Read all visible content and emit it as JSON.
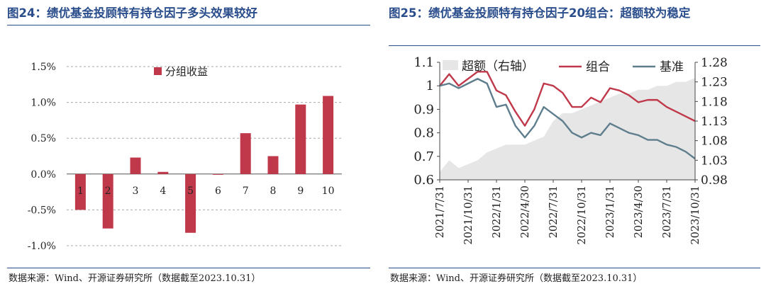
{
  "left": {
    "title": "图24：绩优基金投顾特有持仓因子多头效果较好",
    "source": "数据来源：Wind、开源证券研究所（数据截至2023.10.31）",
    "chart_data": {
      "type": "bar",
      "title": "",
      "legend": [
        "分组收益"
      ],
      "legend_position": "top-center",
      "categories": [
        "1",
        "2",
        "3",
        "4",
        "5",
        "6",
        "7",
        "8",
        "9",
        "10"
      ],
      "series": [
        {
          "name": "分组收益",
          "values": [
            -0.5,
            -0.76,
            0.23,
            0.03,
            -0.82,
            -0.01,
            0.57,
            0.25,
            0.97,
            1.09
          ]
        }
      ],
      "yticks": [
        "1.5%",
        "1.0%",
        "0.5%",
        "0.0%",
        "-0.5%",
        "-1.0%"
      ],
      "ylim": [
        -1.0,
        1.5
      ],
      "grid": true,
      "bar_color": "#c0394b"
    }
  },
  "right": {
    "title": "图25：绩优基金投顾特有持仓因子20组合：超额较为稳定",
    "source": "数据来源：Wind、开源证券研究所（数据截至2023.10.31）",
    "chart_data": {
      "type": "line",
      "legend": [
        "超额（右轴）",
        "组合",
        "基准"
      ],
      "legend_position": "top",
      "x": [
        "2021/7/31",
        "2021/8/31",
        "2021/9/30",
        "2021/10/31",
        "2021/11/30",
        "2021/12/31",
        "2022/1/31",
        "2022/2/28",
        "2022/3/31",
        "2022/4/30",
        "2022/5/31",
        "2022/6/30",
        "2022/7/31",
        "2022/8/31",
        "2022/9/30",
        "2022/10/31",
        "2022/11/30",
        "2022/12/31",
        "2023/1/31",
        "2023/2/28",
        "2023/3/31",
        "2023/4/30",
        "2023/5/31",
        "2023/6/30",
        "2023/7/31",
        "2023/8/31",
        "2023/9/30",
        "2023/10/31"
      ],
      "xticks": [
        "2021/7/31",
        "2021/10/31",
        "2022/1/31",
        "2022/4/30",
        "2022/7/31",
        "2022/10/31",
        "2023/1/31",
        "2023/4/30",
        "2023/7/31",
        "2023/10/31"
      ],
      "yticks_left": [
        "1.1",
        "1",
        "0.9",
        "0.8",
        "0.7",
        "0.6"
      ],
      "yticks_right": [
        "1.28",
        "1.23",
        "1.18",
        "1.13",
        "1.08",
        "1.03",
        "0.98"
      ],
      "ylim_left": [
        0.6,
        1.1
      ],
      "ylim_right": [
        0.98,
        1.28
      ],
      "series": [
        {
          "name": "超额（右轴）",
          "axis": "right",
          "color": "#e6e6e6",
          "values": [
            1.0,
            1.03,
            1.01,
            1.02,
            1.03,
            1.05,
            1.06,
            1.07,
            1.07,
            1.07,
            1.08,
            1.09,
            1.13,
            1.15,
            1.15,
            1.16,
            1.17,
            1.18,
            1.19,
            1.2,
            1.2,
            1.21,
            1.21,
            1.22,
            1.22,
            1.23,
            1.23,
            1.24
          ]
        },
        {
          "name": "组合",
          "axis": "left",
          "color": "#c0394b",
          "values": [
            1.0,
            1.05,
            1.0,
            1.03,
            1.06,
            1.06,
            0.98,
            0.96,
            0.89,
            0.83,
            0.9,
            1.01,
            1.0,
            0.97,
            0.91,
            0.91,
            0.95,
            0.93,
            0.99,
            0.98,
            0.96,
            0.93,
            0.94,
            0.94,
            0.91,
            0.89,
            0.87,
            0.85
          ]
        },
        {
          "name": "基准",
          "axis": "left",
          "color": "#5f7e8d",
          "values": [
            1.0,
            1.01,
            0.99,
            1.01,
            1.03,
            1.01,
            0.91,
            0.92,
            0.83,
            0.78,
            0.83,
            0.91,
            0.88,
            0.85,
            0.8,
            0.78,
            0.8,
            0.79,
            0.84,
            0.82,
            0.8,
            0.79,
            0.77,
            0.77,
            0.75,
            0.74,
            0.72,
            0.69
          ]
        }
      ],
      "grid": false
    }
  }
}
